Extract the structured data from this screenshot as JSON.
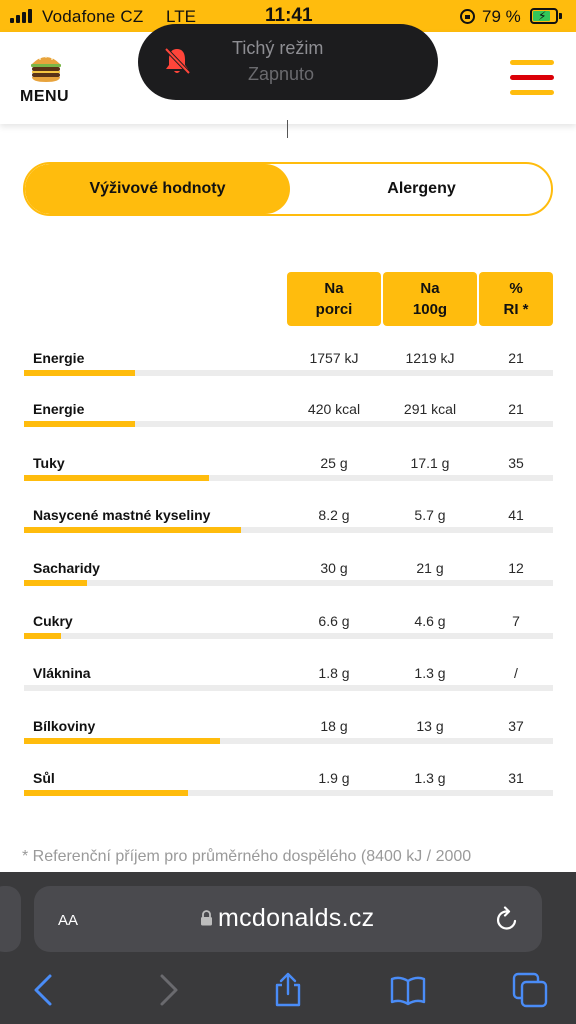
{
  "status_bar": {
    "carrier": "Vodafone CZ",
    "network": "LTE",
    "time": "11:41",
    "battery": "79 %",
    "battery_level": 0.79
  },
  "header": {
    "menu_label": "MENU",
    "logo_icon": "burger-icon",
    "hamburger_icon": "hamburger-menu-icon"
  },
  "toast": {
    "title": "Tichý režim",
    "subtitle": "Zapnuto",
    "icon": "bell-slash-icon"
  },
  "tabs": [
    {
      "label": "Výživové hodnoty",
      "active": true
    },
    {
      "label": "Alergeny",
      "active": false
    }
  ],
  "table": {
    "headers": [
      {
        "line1": "Na",
        "line2": "porci"
      },
      {
        "line1": "Na",
        "line2": "100g"
      },
      {
        "line1": "%",
        "line2": "RI *"
      }
    ],
    "rows": [
      {
        "name": "Energie",
        "portion": "1757 kJ",
        "per100": "1219 kJ",
        "ri": "21",
        "ri_fraction": 0.21
      },
      {
        "name": "Energie",
        "portion": "420 kcal",
        "per100": "291 kcal",
        "ri": "21",
        "ri_fraction": 0.21
      },
      {
        "name": "Tuky",
        "portion": "25 g",
        "per100": "17.1 g",
        "ri": "35",
        "ri_fraction": 0.35
      },
      {
        "name": "Nasycené mastné kyseliny",
        "portion": "8.2 g",
        "per100": "5.7 g",
        "ri": "41",
        "ri_fraction": 0.41
      },
      {
        "name": "Sacharidy",
        "portion": "30 g",
        "per100": "21 g",
        "ri": "12",
        "ri_fraction": 0.12
      },
      {
        "name": "Cukry",
        "portion": "6.6 g",
        "per100": "4.6 g",
        "ri": "7",
        "ri_fraction": 0.07
      },
      {
        "name": "Vláknina",
        "portion": "1.8 g",
        "per100": "1.3 g",
        "ri": "/",
        "ri_fraction": 0
      },
      {
        "name": "Bílkoviny",
        "portion": "18 g",
        "per100": "13 g",
        "ri": "37",
        "ri_fraction": 0.37
      },
      {
        "name": "Sůl",
        "portion": "1.9 g",
        "per100": "1.3 g",
        "ri": "31",
        "ri_fraction": 0.31
      }
    ]
  },
  "footnote": "* Referenční příjem pro průměrného dospělého (8400 kJ / 2000",
  "safari": {
    "aa_label": "AA",
    "url": "mcdonalds.cz"
  },
  "colors": {
    "brand_yellow": "#ffbc0d",
    "brand_red": "#db0007",
    "safari_bg": "#3a3a3c",
    "safari_blue": "#4a8cf7"
  }
}
